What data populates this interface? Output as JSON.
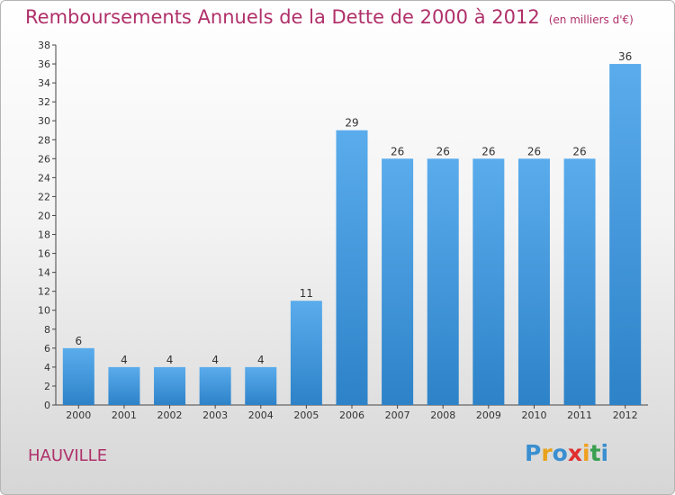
{
  "title": "Remboursements Annuels de la Dette de 2000 à 2012",
  "subtitle": "(en milliers d'€)",
  "commune": "HAUVILLE",
  "logo": {
    "text": "Proxiti",
    "colors": [
      "#3a8fd0",
      "#e8a21a",
      "#3a8fd0",
      "#e03030",
      "#f0a020",
      "#3aa050",
      "#3a8fd0"
    ]
  },
  "colors": {
    "title": "#b0306a",
    "bar_light": "#5aacec",
    "bar_dark": "#2d82c8"
  },
  "chart_data": {
    "type": "bar",
    "title": "Remboursements Annuels de la Dette de 2000 à 2012",
    "xlabel": "",
    "ylabel": "",
    "categories": [
      "2000",
      "2001",
      "2002",
      "2003",
      "2004",
      "2005",
      "2006",
      "2007",
      "2008",
      "2009",
      "2010",
      "2011",
      "2012"
    ],
    "values": [
      6,
      4,
      4,
      4,
      4,
      11,
      29,
      26,
      26,
      26,
      26,
      26,
      36
    ],
    "data_labels": [
      "6",
      "4",
      "4",
      "4",
      "4",
      "11",
      "29",
      "26",
      "26",
      "26",
      "26",
      "26",
      "36"
    ],
    "yticks": [
      "0",
      "2",
      "4",
      "6",
      "8",
      "10",
      "12",
      "14",
      "16",
      "18",
      "20",
      "22",
      "24",
      "26",
      "28",
      "30",
      "32",
      "34",
      "36",
      "38"
    ],
    "ylim": [
      0,
      38
    ],
    "grid": false
  }
}
